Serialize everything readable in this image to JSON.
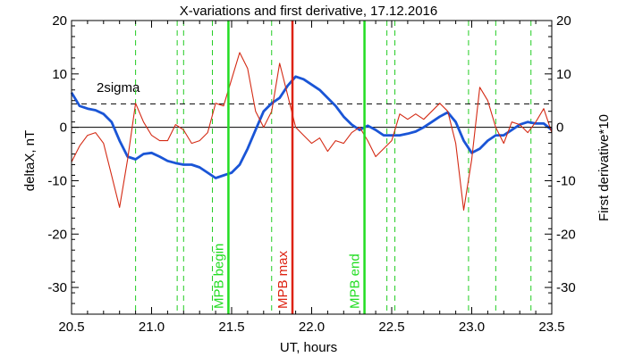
{
  "chart_data": {
    "type": "line",
    "title": "X-variations and first derivative, 17.12.2016",
    "xlabel": "UT, hours",
    "ylabel_left": "deltaX, nT",
    "ylabel_right": "First derivative*10",
    "xlim": [
      20.5,
      23.5
    ],
    "ylim": [
      -35,
      20
    ],
    "xticks": [
      20.5,
      21.0,
      21.5,
      22.0,
      22.5,
      23.0,
      23.5
    ],
    "xtick_labels": [
      "20.5",
      "21.0",
      "21.5",
      "22.0",
      "22.5",
      "23.0",
      "23.5"
    ],
    "yticks": [
      -30,
      -20,
      -10,
      0,
      10,
      20
    ],
    "ytick_labels": [
      "-30",
      "-20",
      "-10",
      "0",
      "10",
      "20"
    ],
    "colors": {
      "deltaX": "#1a55d6",
      "derivative": "#d42a14",
      "mpb_begin_end": "#22dd22",
      "mpb_max": "#dd2211",
      "dashed_green": "#22cc22",
      "axis": "#000000"
    },
    "sigma_level": 4.4,
    "sigma_label": "2sigma",
    "zero_line": 0,
    "markers": [
      {
        "x": 21.48,
        "label": "MPB begin",
        "color": "#22dd22"
      },
      {
        "x": 21.88,
        "label": "MPB max",
        "color": "#dd2211"
      },
      {
        "x": 22.33,
        "label": "MPB end",
        "color": "#22dd22"
      }
    ],
    "dashed_lines": [
      20.9,
      21.16,
      21.2,
      21.38,
      21.75,
      22.47,
      22.52,
      22.98,
      23.15,
      23.37
    ],
    "series": [
      {
        "key": "deltaX",
        "color": "#1a55d6",
        "x": [
          20.5,
          20.55,
          20.6,
          20.65,
          20.7,
          20.75,
          20.8,
          20.85,
          20.9,
          20.95,
          21.0,
          21.05,
          21.1,
          21.15,
          21.2,
          21.25,
          21.3,
          21.35,
          21.4,
          21.45,
          21.5,
          21.55,
          21.6,
          21.65,
          21.7,
          21.75,
          21.8,
          21.85,
          21.9,
          21.95,
          22.0,
          22.05,
          22.1,
          22.15,
          22.2,
          22.25,
          22.3,
          22.35,
          22.4,
          22.45,
          22.5,
          22.55,
          22.6,
          22.65,
          22.7,
          22.75,
          22.8,
          22.85,
          22.9,
          22.95,
          23.0,
          23.05,
          23.1,
          23.15,
          23.2,
          23.25,
          23.3,
          23.35,
          23.4,
          23.45,
          23.5
        ],
        "values": [
          6.5,
          4.0,
          3.5,
          3.2,
          2.5,
          1.0,
          -2.5,
          -5.5,
          -6.0,
          -5.0,
          -4.8,
          -5.5,
          -6.3,
          -6.7,
          -7.0,
          -7.0,
          -7.5,
          -8.5,
          -9.5,
          -9.0,
          -8.5,
          -7.0,
          -4.0,
          -0.5,
          3.0,
          4.5,
          5.5,
          7.8,
          9.5,
          9.0,
          8.0,
          7.0,
          5.5,
          4.0,
          2.0,
          0.5,
          -0.5,
          0.3,
          -0.5,
          -1.5,
          -1.5,
          -1.5,
          -1.2,
          -0.8,
          0.0,
          1.0,
          2.0,
          2.8,
          1.0,
          -2.5,
          -4.8,
          -4.0,
          -2.5,
          -1.5,
          -1.5,
          -0.5,
          0.5,
          1.0,
          0.7,
          0.7,
          -0.5
        ]
      },
      {
        "key": "derivative",
        "color": "#d42a14",
        "x": [
          20.5,
          20.55,
          20.6,
          20.65,
          20.7,
          20.75,
          20.8,
          20.85,
          20.9,
          20.95,
          21.0,
          21.05,
          21.1,
          21.15,
          21.2,
          21.25,
          21.3,
          21.35,
          21.4,
          21.45,
          21.5,
          21.55,
          21.6,
          21.65,
          21.7,
          21.75,
          21.8,
          21.85,
          21.9,
          21.95,
          22.0,
          22.05,
          22.1,
          22.15,
          22.2,
          22.25,
          22.3,
          22.35,
          22.4,
          22.45,
          22.5,
          22.55,
          22.6,
          22.65,
          22.7,
          22.75,
          22.8,
          22.85,
          22.9,
          22.95,
          23.0,
          23.05,
          23.1,
          23.15,
          23.2,
          23.25,
          23.3,
          23.35,
          23.4,
          23.45,
          23.5
        ],
        "values": [
          -6.5,
          -3.5,
          -1.5,
          -1.0,
          -3.0,
          -9.0,
          -15.0,
          -6.0,
          4.5,
          1.0,
          -1.5,
          -2.5,
          -2.5,
          0.5,
          -0.5,
          -3.0,
          -2.5,
          -1.0,
          4.5,
          4.0,
          9.0,
          14.0,
          11.0,
          3.0,
          0.0,
          3.0,
          12.0,
          6.0,
          0.0,
          -1.5,
          -3.0,
          -2.0,
          -4.5,
          -2.5,
          -3.0,
          -1.0,
          0.0,
          -2.5,
          -5.5,
          -4.0,
          -2.5,
          2.5,
          1.5,
          2.5,
          1.5,
          3.0,
          4.5,
          3.0,
          -3.0,
          -15.5,
          -6.0,
          7.5,
          5.0,
          0.0,
          -3.0,
          1.0,
          0.5,
          -1.0,
          1.0,
          3.5,
          -1.0
        ]
      }
    ]
  }
}
